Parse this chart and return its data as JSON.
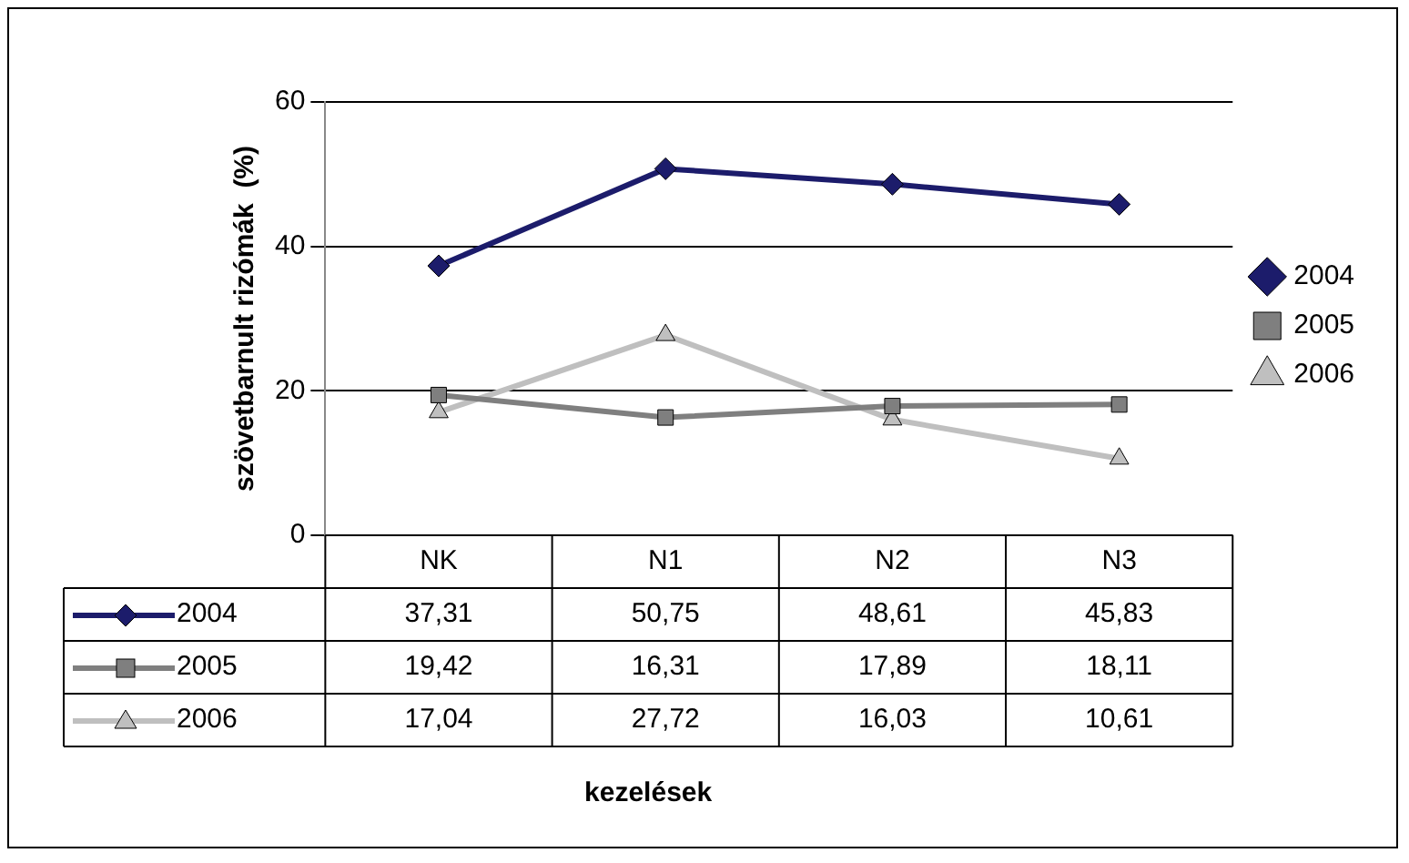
{
  "chart_data": {
    "type": "line",
    "ylabel": "szövetbarnult rizómák  (%)",
    "annotations": [
      "kezelések"
    ],
    "categories": [
      "NK",
      "N1",
      "N2",
      "N3"
    ],
    "series": [
      {
        "name": "2004",
        "color": "#1c1c6b",
        "marker": "diamond",
        "values": [
          37.31,
          50.75,
          48.61,
          45.83
        ],
        "value_labels": [
          "37,31",
          "50,75",
          "48,61",
          "45,83"
        ]
      },
      {
        "name": "2005",
        "color": "#7f7f7f",
        "marker": "square",
        "values": [
          19.42,
          16.31,
          17.89,
          18.11
        ],
        "value_labels": [
          "19,42",
          "16,31",
          "17,89",
          "18,11"
        ]
      },
      {
        "name": "2006",
        "color": "#bfbfbf",
        "marker": "triangle",
        "values": [
          17.04,
          27.72,
          16.03,
          10.61
        ],
        "value_labels": [
          "17,04",
          "27,72",
          "16,03",
          "10,61"
        ]
      }
    ],
    "ylim": [
      0,
      60
    ],
    "yticks": [
      0,
      20,
      40,
      60
    ],
    "grid": "y",
    "legend": "right",
    "line_style": "solid"
  }
}
